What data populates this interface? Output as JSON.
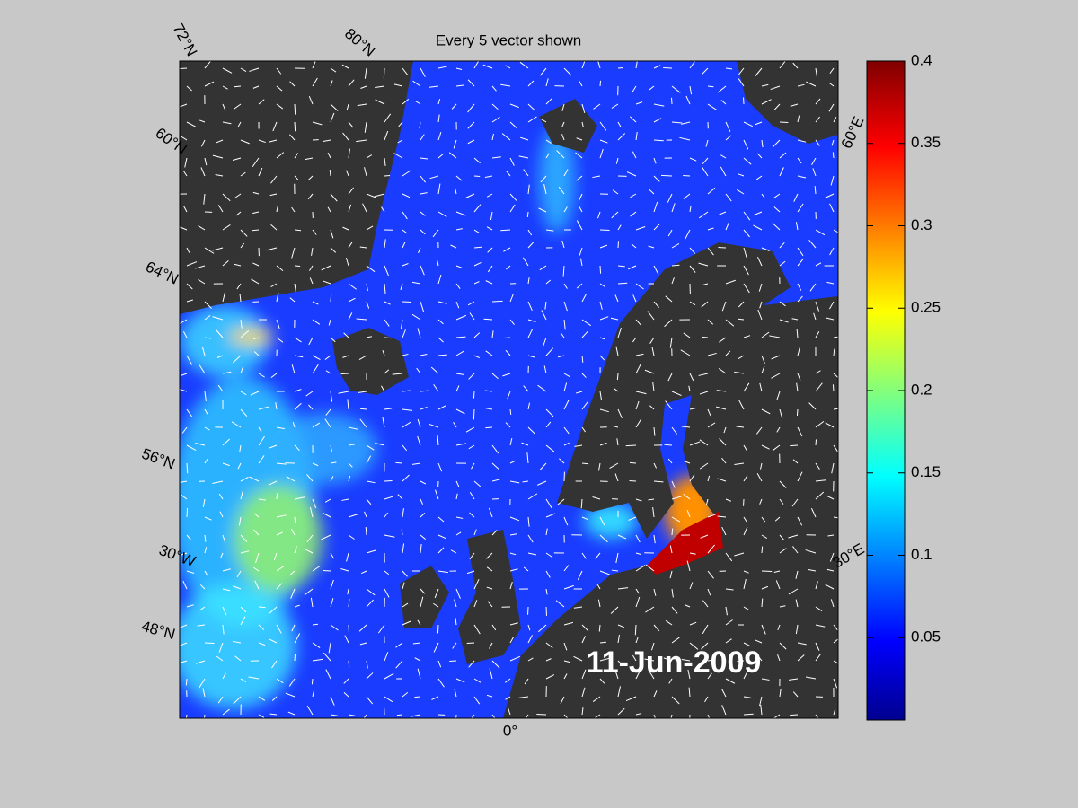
{
  "title": "Every 5 vector shown",
  "date": "11-Jun-2009",
  "graticule_labels": [
    "72°N",
    "80°N",
    "60°N",
    "64°N",
    "56°N",
    "30°W",
    "48°N",
    "0°",
    "30°E",
    "60°E"
  ],
  "colorbar": {
    "lim": [
      0,
      0.4
    ],
    "ticks": [
      0.05,
      0.1,
      0.15,
      0.2,
      0.25,
      0.3,
      0.35,
      0.4
    ]
  }
}
